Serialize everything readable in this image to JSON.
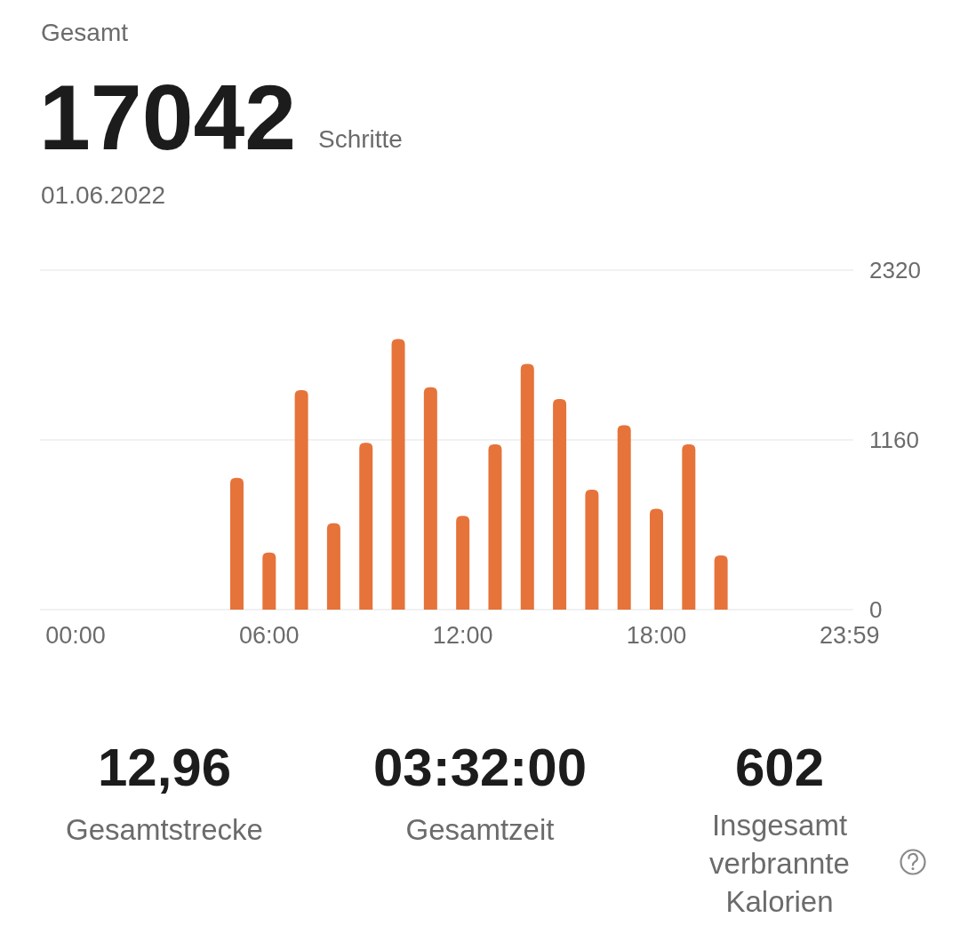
{
  "chart_data": {
    "type": "bar",
    "title": "Gesamt",
    "subtitle": "01.06.2022",
    "annotations": [
      "17042",
      "Schritte",
      "12,96",
      "Gesamtstrecke",
      "03:32:00",
      "Gesamtzeit",
      "602",
      "Insgesamt verbrannte Kalorien"
    ],
    "x": [
      5,
      6,
      7,
      8,
      9,
      10,
      11,
      12,
      13,
      14,
      15,
      16,
      17,
      18,
      19,
      20
    ],
    "values": [
      900,
      390,
      1500,
      590,
      1140,
      1850,
      1520,
      640,
      1130,
      1680,
      1440,
      820,
      1260,
      690,
      1130,
      370
    ],
    "color": "#e6733a",
    "xlim": [
      -1.1,
      24.1
    ],
    "xticks": [
      {
        "value": 0,
        "label": "00:00"
      },
      {
        "value": 6,
        "label": "06:00"
      },
      {
        "value": 12,
        "label": "12:00"
      },
      {
        "value": 18,
        "label": "18:00"
      },
      {
        "value": 23.983,
        "label": "23:59"
      }
    ],
    "ylim": [
      0,
      2320
    ],
    "yticks": [
      0,
      1160,
      2320
    ],
    "grid": "y"
  }
}
